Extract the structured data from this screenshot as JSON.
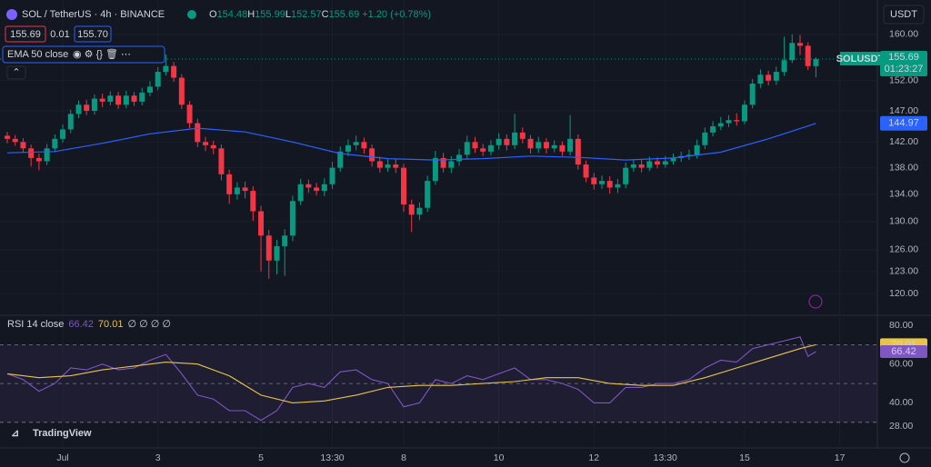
{
  "header": {
    "symbol": "SOL / TetherUS · 4h · BINANCE",
    "ohlc_prefixes": [
      "O",
      "H",
      "L",
      "C"
    ],
    "change": "+1.20 (+0.78%)",
    "spread": "0.01",
    "ask": "155.70",
    "currency": "USDT",
    "countdown": "01:23:27",
    "logo": "TradingView"
  },
  "chart_data": {
    "type": "candlestick",
    "log_scale": true,
    "up_color": "#089981",
    "down_color": "#f23645",
    "categories": [
      null,
      null,
      null,
      null,
      null,
      null,
      null,
      "Jul",
      null,
      null,
      null,
      null,
      null,
      null,
      null,
      null,
      null,
      null,
      null,
      "3",
      null,
      null,
      null,
      null,
      null,
      null,
      null,
      null,
      null,
      null,
      null,
      null,
      "5",
      null,
      null,
      null,
      null,
      null,
      null,
      null,
      null,
      "13:30",
      null,
      null,
      null,
      null,
      null,
      null,
      null,
      null,
      "8",
      null,
      null,
      null,
      null,
      null,
      null,
      null,
      null,
      null,
      null,
      null,
      "10",
      null,
      null,
      null,
      null,
      null,
      null,
      null,
      null,
      null,
      null,
      null,
      "12",
      null,
      null,
      null,
      null,
      null,
      null,
      null,
      null,
      "13:30",
      null,
      null,
      null,
      null,
      null,
      null,
      null,
      null,
      null,
      "15",
      null,
      null,
      null,
      null,
      null,
      null,
      null,
      null,
      null,
      null,
      null,
      "17"
    ],
    "series": [
      {
        "name": "SOLUSDT",
        "open": [
          143.0,
          142.5,
          142.0,
          141.0,
          139.5,
          139.0,
          141.0,
          142.5,
          144.0,
          146.5,
          148.0,
          147.0,
          149.0,
          148.5,
          149.5,
          148.0,
          149.5,
          148.5,
          150.0,
          151.0,
          153.5,
          154.5,
          152.5,
          148.0,
          145.0,
          142.0,
          141.5,
          141.0,
          137.0,
          134.0,
          135.0,
          134.5,
          131.5,
          128.0,
          124.5,
          126.5,
          128.0,
          133.0,
          135.5,
          135.0,
          134.5,
          135.5,
          138.0,
          140.5,
          141.5,
          142.0,
          141.0,
          139.0,
          138.0,
          138.5,
          138.0,
          132.5,
          131.0,
          132.0,
          136.0,
          139.5,
          138.0,
          139.0,
          140.0,
          142.0,
          141.0,
          140.5,
          141.5,
          142.5,
          141.5,
          143.5,
          142.5,
          141.0,
          142.0,
          141.0,
          141.5,
          140.5,
          142.5,
          138.5,
          136.5,
          135.5,
          136.0,
          135.0,
          135.5,
          138.0,
          138.5,
          138.0,
          139.0,
          138.5,
          139.0,
          139.5,
          139.8,
          140.0,
          141.5,
          143.5,
          144.5,
          145.0,
          145.5,
          145.3,
          148.0,
          151.5,
          153.0,
          152.0,
          153.5,
          155.5,
          158.5,
          158.0,
          154.48,
          null,
          null,
          null
        ],
        "high": [
          143.6,
          143.1,
          142.6,
          141.6,
          140.2,
          141.7,
          143.2,
          144.8,
          147.2,
          148.7,
          148.8,
          149.7,
          149.8,
          150.2,
          150.1,
          150.3,
          150.1,
          150.8,
          151.9,
          154.3,
          156.5,
          155.2,
          153.1,
          148.6,
          145.7,
          142.8,
          142.2,
          141.6,
          137.7,
          135.8,
          135.9,
          135.2,
          132.3,
          128.8,
          127.4,
          128.9,
          133.8,
          136.3,
          136.2,
          135.7,
          136.4,
          138.9,
          141.3,
          142.4,
          143.0,
          142.7,
          141.6,
          139.7,
          139.3,
          139.4,
          138.6,
          133.2,
          132.8,
          136.8,
          140.6,
          140.3,
          139.8,
          140.9,
          143.0,
          142.8,
          141.7,
          142.3,
          143.4,
          143.2,
          146.5,
          144.3,
          143.1,
          142.8,
          142.6,
          142.3,
          142.1,
          146.3,
          143.2,
          139.1,
          137.2,
          136.8,
          136.7,
          136.3,
          138.8,
          139.3,
          139.2,
          139.7,
          139.6,
          139.8,
          140.2,
          140.5,
          140.8,
          142.4,
          144.3,
          145.3,
          146.0,
          146.3,
          146.6,
          148.7,
          152.3,
          153.9,
          153.7,
          154.4,
          159.6,
          160.0,
          159.9,
          158.6,
          155.99,
          null,
          null,
          null
        ],
        "low": [
          141.8,
          141.4,
          140.3,
          138.2,
          137.6,
          138.4,
          140.4,
          141.9,
          143.4,
          145.8,
          146.3,
          146.4,
          147.6,
          147.9,
          147.3,
          147.4,
          147.8,
          147.9,
          149.4,
          150.4,
          152.9,
          151.8,
          147.3,
          144.2,
          141.2,
          140.6,
          140.1,
          136.1,
          132.6,
          133.2,
          133.4,
          130.1,
          123.0,
          122.0,
          122.6,
          122.4,
          127.2,
          132.4,
          134.2,
          133.8,
          133.7,
          134.8,
          137.4,
          139.8,
          140.7,
          140.2,
          138.2,
          137.3,
          137.4,
          137.2,
          131.4,
          128.5,
          130.2,
          131.4,
          135.4,
          137.3,
          137.2,
          138.3,
          139.4,
          140.3,
          139.8,
          139.9,
          140.8,
          140.7,
          140.9,
          141.8,
          140.2,
          140.3,
          140.2,
          140.4,
          139.8,
          139.9,
          137.7,
          135.8,
          134.7,
          134.8,
          134.1,
          134.2,
          134.9,
          137.4,
          137.3,
          137.5,
          137.9,
          138.0,
          138.5,
          138.9,
          139.2,
          139.4,
          140.9,
          142.9,
          143.9,
          144.4,
          144.6,
          144.8,
          147.4,
          150.8,
          151.2,
          151.3,
          152.8,
          155.0,
          156.4,
          153.8,
          152.57,
          null,
          null,
          null
        ],
        "close": [
          142.5,
          142.0,
          141.0,
          139.5,
          139.0,
          141.0,
          142.5,
          144.0,
          146.5,
          148.0,
          147.0,
          149.0,
          148.5,
          149.5,
          148.0,
          149.5,
          148.5,
          150.0,
          151.0,
          153.5,
          154.5,
          152.5,
          148.0,
          145.0,
          142.0,
          141.5,
          141.0,
          137.0,
          134.0,
          135.0,
          134.5,
          131.5,
          128.0,
          124.5,
          126.5,
          128.0,
          133.0,
          135.5,
          135.0,
          134.5,
          135.5,
          138.0,
          140.5,
          141.5,
          142.0,
          141.0,
          139.0,
          138.0,
          138.5,
          138.0,
          132.5,
          131.0,
          132.0,
          136.0,
          139.5,
          138.0,
          139.0,
          140.0,
          142.0,
          141.0,
          140.5,
          141.5,
          142.5,
          141.5,
          143.5,
          142.5,
          141.0,
          142.0,
          141.0,
          141.5,
          140.5,
          142.5,
          138.5,
          136.5,
          135.5,
          136.0,
          135.0,
          135.5,
          138.0,
          138.5,
          138.0,
          139.0,
          138.5,
          139.0,
          139.5,
          139.8,
          140.0,
          141.5,
          143.5,
          144.5,
          145.0,
          145.5,
          145.3,
          148.0,
          151.5,
          153.0,
          152.0,
          153.5,
          155.5,
          158.5,
          158.0,
          154.48,
          155.69,
          null,
          null,
          null
        ]
      }
    ],
    "ema": {
      "name": "EMA 50 close",
      "color": "#2962ff",
      "x": [
        0,
        6,
        12,
        18,
        24,
        30,
        36,
        42,
        48,
        54,
        60,
        66,
        72,
        78,
        84,
        90,
        96,
        102
      ],
      "values": [
        140.3,
        140.5,
        141.8,
        143.3,
        144.2,
        143.6,
        142.0,
        140.2,
        139.4,
        139.2,
        139.4,
        139.8,
        139.6,
        139.2,
        139.5,
        140.4,
        142.5,
        144.97
      ]
    },
    "ylim": [
      117.4,
      164.9
    ],
    "yticks": [
      {
        "value": 160,
        "label": "160.00"
      },
      {
        "value": 152,
        "label": "152.00"
      },
      {
        "value": 147,
        "label": "147.00"
      },
      {
        "value": 142,
        "label": "142.00"
      },
      {
        "value": 138,
        "label": "138.00"
      },
      {
        "value": 134,
        "label": "134.00"
      },
      {
        "value": 130,
        "label": "130.00"
      },
      {
        "value": 126,
        "label": "126.00"
      },
      {
        "value": 123,
        "label": "123.00"
      },
      {
        "value": 120,
        "label": "120.00"
      }
    ],
    "grid": true,
    "rsi": {
      "name": "RSI 14 close",
      "extra": "∅ ∅ ∅ ∅",
      "ylim": [
        18.2,
        84.7
      ],
      "levels": [
        70,
        50,
        30
      ],
      "yticks": [
        {
          "value": 80,
          "label": "80.00"
        },
        {
          "value": 60,
          "label": "60.00"
        },
        {
          "value": 40,
          "label": "40.00"
        },
        {
          "value": 28,
          "label": "28.00"
        }
      ],
      "series": [
        {
          "name": "RSI",
          "color": "#7e57c2",
          "x": [
            0,
            2,
            4,
            6,
            8,
            10,
            12,
            14,
            16,
            18,
            20,
            22,
            24,
            26,
            28,
            30,
            32,
            34,
            36,
            38,
            40,
            42,
            44,
            46,
            48,
            50,
            52,
            54,
            56,
            58,
            60,
            62,
            64,
            66,
            68,
            70,
            72,
            74,
            76,
            78,
            80,
            82,
            84,
            86,
            88,
            90,
            92,
            94,
            96,
            98,
            100,
            101,
            102
          ],
          "values": [
            55,
            52,
            46,
            50,
            58,
            57,
            60,
            57,
            58,
            62,
            65,
            55,
            44,
            42,
            36,
            36,
            31,
            36,
            48,
            50,
            48,
            56,
            57,
            52,
            50,
            38,
            40,
            52,
            50,
            54,
            52,
            55,
            58,
            52,
            52,
            50,
            47,
            40,
            40,
            48,
            48,
            50,
            50,
            52,
            58,
            62,
            61,
            68,
            70,
            72,
            74,
            64,
            66.42
          ]
        },
        {
          "name": "RSI-based MA",
          "color": "#e8c547",
          "x": [
            0,
            4,
            8,
            12,
            16,
            20,
            24,
            28,
            32,
            36,
            40,
            44,
            48,
            52,
            56,
            60,
            64,
            68,
            72,
            76,
            80,
            84,
            88,
            92,
            96,
            100,
            102
          ],
          "values": [
            55,
            53,
            54,
            57,
            59,
            61,
            60,
            54,
            44,
            40,
            41,
            44,
            48,
            49,
            49,
            50,
            51,
            53,
            53,
            50,
            49,
            49,
            53,
            58,
            63,
            68,
            70.01
          ]
        }
      ]
    }
  }
}
